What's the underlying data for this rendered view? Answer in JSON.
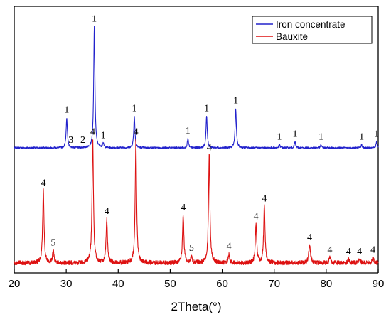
{
  "chart_data": {
    "type": "line",
    "title": "",
    "xlabel": "2Theta(°)",
    "ylabel": "",
    "xlim": [
      20,
      90
    ],
    "x_ticks": [
      20,
      30,
      40,
      50,
      60,
      70,
      80,
      90
    ],
    "y_axis_visible": false,
    "grid": false,
    "legend_position": "top-right",
    "series": [
      {
        "name": "Iron concentrate",
        "color": "#2222cc",
        "baseline": 0.8,
        "noise": 0.006,
        "peaks": [
          {
            "x": 30.1,
            "height": 0.2,
            "width": 0.14,
            "label": "1"
          },
          {
            "x": 35.4,
            "height": 0.8,
            "width": 0.14,
            "label": "1"
          },
          {
            "x": 37.1,
            "height": 0.03,
            "width": 0.14,
            "label": "1"
          },
          {
            "x": 43.1,
            "height": 0.21,
            "width": 0.14,
            "label": "1"
          },
          {
            "x": 53.4,
            "height": 0.06,
            "width": 0.14,
            "label": "1"
          },
          {
            "x": 57.0,
            "height": 0.21,
            "width": 0.14,
            "label": "1"
          },
          {
            "x": 62.6,
            "height": 0.26,
            "width": 0.14,
            "label": "1"
          },
          {
            "x": 71.0,
            "height": 0.02,
            "width": 0.14,
            "label": "1"
          },
          {
            "x": 74.0,
            "height": 0.04,
            "width": 0.14,
            "label": "1"
          },
          {
            "x": 79.0,
            "height": 0.02,
            "width": 0.14,
            "label": "1"
          },
          {
            "x": 86.8,
            "height": 0.02,
            "width": 0.14,
            "label": "1"
          },
          {
            "x": 89.7,
            "height": 0.04,
            "width": 0.14,
            "label": "1"
          }
        ],
        "extra_labels": [
          {
            "x": 30.9,
            "label": "3"
          },
          {
            "x": 33.2,
            "label": "2"
          }
        ]
      },
      {
        "name": "Bauxite",
        "color": "#dd1111",
        "baseline": 0.0,
        "noise": 0.012,
        "peaks": [
          {
            "x": 25.6,
            "height": 0.41,
            "width": 0.16,
            "label": "4"
          },
          {
            "x": 27.5,
            "height": 0.07,
            "width": 0.16,
            "label": "5"
          },
          {
            "x": 35.1,
            "height": 0.7,
            "width": 0.16,
            "label": "4"
          },
          {
            "x": 37.8,
            "height": 0.25,
            "width": 0.16,
            "label": "4"
          },
          {
            "x": 43.4,
            "height": 0.7,
            "width": 0.16,
            "label": "4"
          },
          {
            "x": 52.5,
            "height": 0.27,
            "width": 0.16,
            "label": "4"
          },
          {
            "x": 54.1,
            "height": 0.04,
            "width": 0.16,
            "label": "5"
          },
          {
            "x": 57.5,
            "height": 0.61,
            "width": 0.16,
            "label": "4"
          },
          {
            "x": 61.3,
            "height": 0.05,
            "width": 0.16,
            "label": "4"
          },
          {
            "x": 66.5,
            "height": 0.22,
            "width": 0.16,
            "label": "4"
          },
          {
            "x": 68.1,
            "height": 0.32,
            "width": 0.16,
            "label": "4"
          },
          {
            "x": 76.8,
            "height": 0.1,
            "width": 0.2,
            "label": "4"
          },
          {
            "x": 80.7,
            "height": 0.03,
            "width": 0.18,
            "label": "4"
          },
          {
            "x": 84.3,
            "height": 0.02,
            "width": 0.18,
            "label": "4"
          },
          {
            "x": 86.4,
            "height": 0.02,
            "width": 0.18,
            "label": "4"
          },
          {
            "x": 89.0,
            "height": 0.03,
            "width": 0.18,
            "label": "4"
          }
        ],
        "extra_labels": []
      }
    ]
  }
}
